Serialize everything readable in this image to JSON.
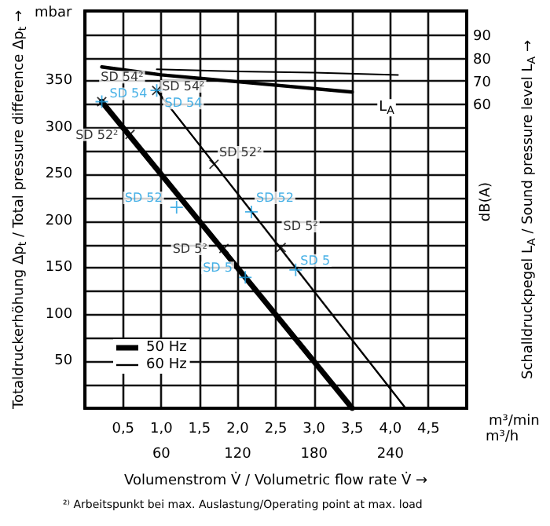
{
  "chart_data": {
    "type": "line",
    "xlabel": "Volumenstrom V̇ / Volumetric flow rate V̇ →",
    "ylabel": "Totaldruckerhöhung Δp$_{t}$ / Total pressure difference Δp$_{t}$ →",
    "y2label": "Schalldruckpegel L$_{A}$ / Sound pressure level L$_{A}$ →",
    "x2label": "m³/h",
    "annotations": [
      "mbar",
      "dB(A)",
      "m³/min",
      "²⁾ Arbeitspunkt bei max. Auslastung/Operating point at max. load"
    ],
    "xlim": [
      0,
      5
    ],
    "xticks": [
      {
        "value": 0.5,
        "label": "0,5"
      },
      {
        "value": 1.0,
        "label": "1,0"
      },
      {
        "value": 1.5,
        "label": "1,5"
      },
      {
        "value": 2.0,
        "label": "2,0"
      },
      {
        "value": 2.5,
        "label": "2,5"
      },
      {
        "value": 3.0,
        "label": "3,0"
      },
      {
        "value": 3.5,
        "label": "3,5"
      },
      {
        "value": 4.0,
        "label": "4,0"
      },
      {
        "value": 4.5,
        "label": "4,5"
      }
    ],
    "x2lim": [
      0,
      300
    ],
    "x2ticks": [
      60,
      120,
      180,
      240
    ],
    "ylim": [
      0,
      425
    ],
    "yticks": [
      {
        "value": 25,
        "label": null
      },
      50,
      {
        "value": 75,
        "label": null
      },
      100,
      {
        "value": 125,
        "label": null
      },
      150,
      {
        "value": 175,
        "label": null
      },
      200,
      {
        "value": 225,
        "label": null
      },
      250,
      {
        "value": 275,
        "label": null
      },
      300,
      {
        "value": 325,
        "label": null
      },
      350,
      {
        "value": 375,
        "label": null
      },
      {
        "value": 400,
        "label": null
      }
    ],
    "y2lim": [
      -72.5,
      101.5
    ],
    "y2ticks": [
      60,
      70,
      80,
      90
    ],
    "grid": true,
    "legend": "bottom left",
    "series": [
      {
        "name": "50 Hz",
        "color": "#000000",
        "x": [
          0.22,
          3.5
        ],
        "values": [
          328,
          0
        ]
      },
      {
        "name": "60 Hz",
        "color": "#000000",
        "x": [
          0.94,
          4.2
        ],
        "values": [
          340,
          0
        ]
      },
      {
        "name": "L$_{A}$",
        "color": "#000000",
        "axis": "y2",
        "x": [
          0.22,
          1.0,
          2.0,
          3.5
        ],
        "values": [
          77,
          73.5,
          70.5,
          66
        ]
      },
      {
        "color": "#000000",
        "axis": "y2",
        "x": [
          0.94,
          2.0,
          3.0,
          4.1
        ],
        "values": [
          76,
          75,
          74.5,
          73.5
        ]
      },
      {
        "type": "scatter",
        "marker": "cross",
        "color": "#000000",
        "x": [
          0.22,
          0.59,
          1.82,
          0.94,
          1.69,
          2.57
        ],
        "values": [
          328,
          293,
          171,
          340,
          261,
          172
        ],
        "value_labels": [
          "SD 54²",
          "SD 52²",
          "SD 5²",
          "SD 54²",
          "SD 52²",
          "SD 5²"
        ]
      },
      {
        "type": "scatter",
        "marker": "cross",
        "color": "#1a9ee0",
        "x": [
          0.22,
          1.2,
          2.1,
          0.94,
          2.18,
          2.76
        ],
        "values": [
          328,
          215,
          140,
          340,
          210,
          148
        ],
        "value_labels": [
          "SD 54",
          "SD 52",
          "SD 5",
          "SD 54",
          "SD 52",
          "SD 5"
        ]
      }
    ]
  }
}
